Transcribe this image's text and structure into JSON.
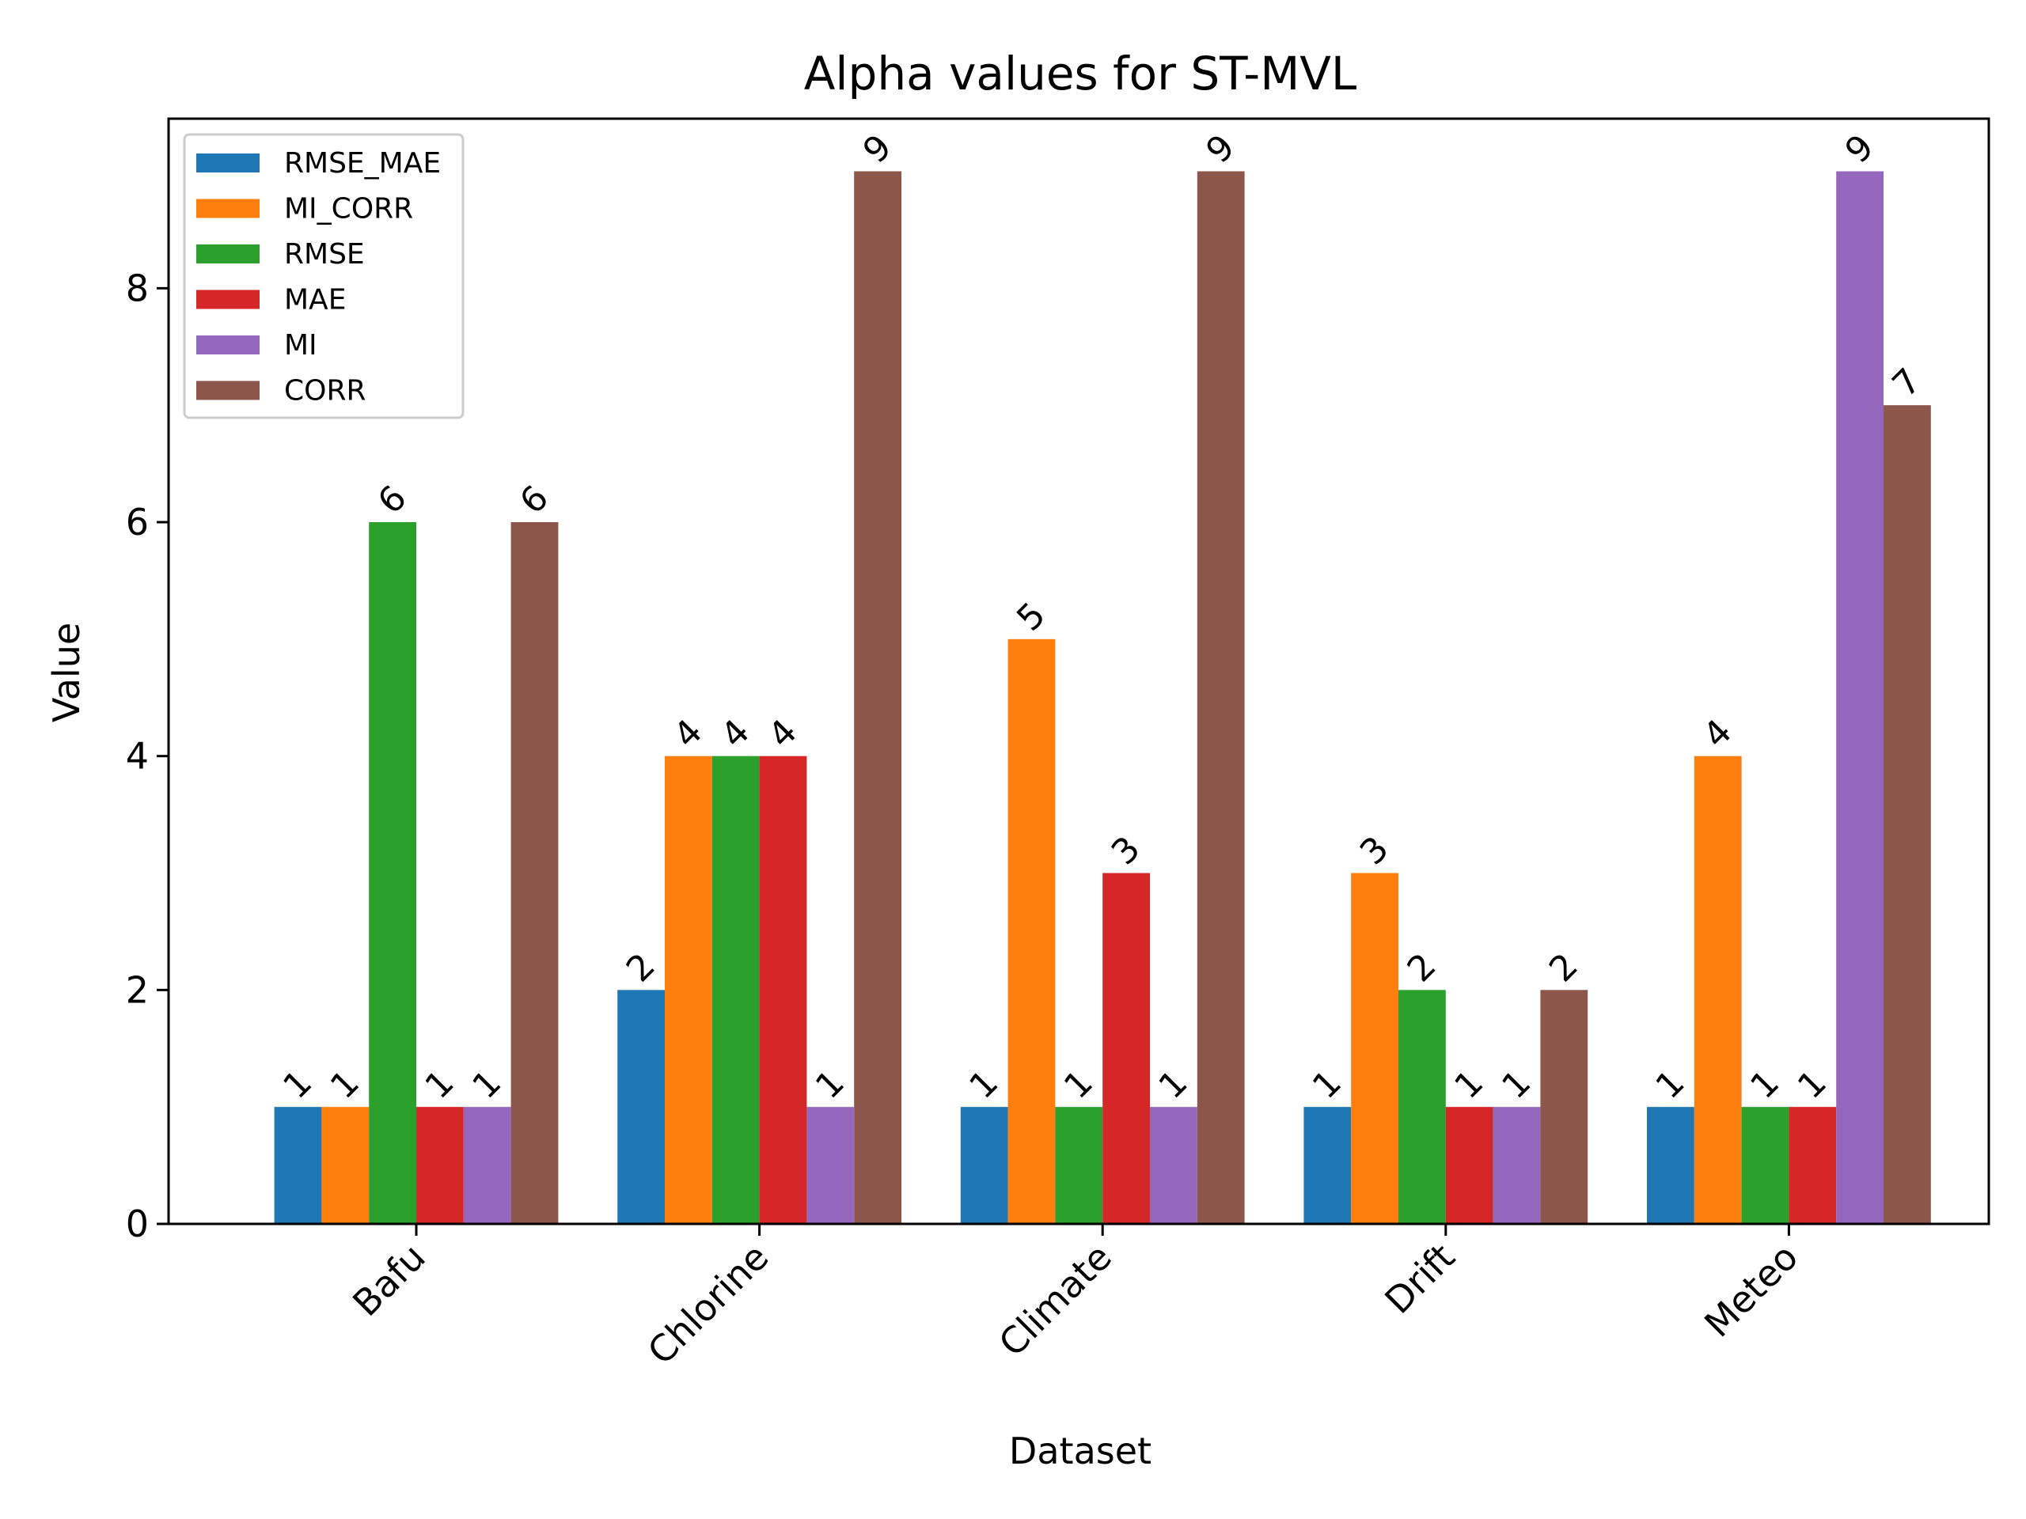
{
  "chart_data": {
    "type": "bar",
    "title": "Alpha values for ST-MVL",
    "xlabel": "Dataset",
    "ylabel": "Value",
    "categories": [
      "Bafu",
      "Chlorine",
      "Climate",
      "Drift",
      "Meteo"
    ],
    "ylim": [
      0,
      9.45
    ],
    "yticks": [
      "0",
      "2",
      "4",
      "6",
      "8"
    ],
    "grid": false,
    "legend_position": "top-left",
    "series": [
      {
        "name": "RMSE_MAE",
        "color": "#1f77b4",
        "values": [
          1,
          2,
          1,
          1,
          1
        ]
      },
      {
        "name": "MI_CORR",
        "color": "#ff7f0e",
        "values": [
          1,
          4,
          5,
          3,
          4
        ]
      },
      {
        "name": "RMSE",
        "color": "#2ca02c",
        "values": [
          6,
          4,
          1,
          2,
          1
        ]
      },
      {
        "name": "MAE",
        "color": "#d62728",
        "values": [
          1,
          4,
          3,
          1,
          1
        ]
      },
      {
        "name": "MI",
        "color": "#9467bd",
        "values": [
          1,
          1,
          1,
          1,
          9
        ]
      },
      {
        "name": "CORR",
        "color": "#8c564b",
        "values": [
          6,
          9,
          9,
          2,
          7
        ]
      }
    ]
  }
}
